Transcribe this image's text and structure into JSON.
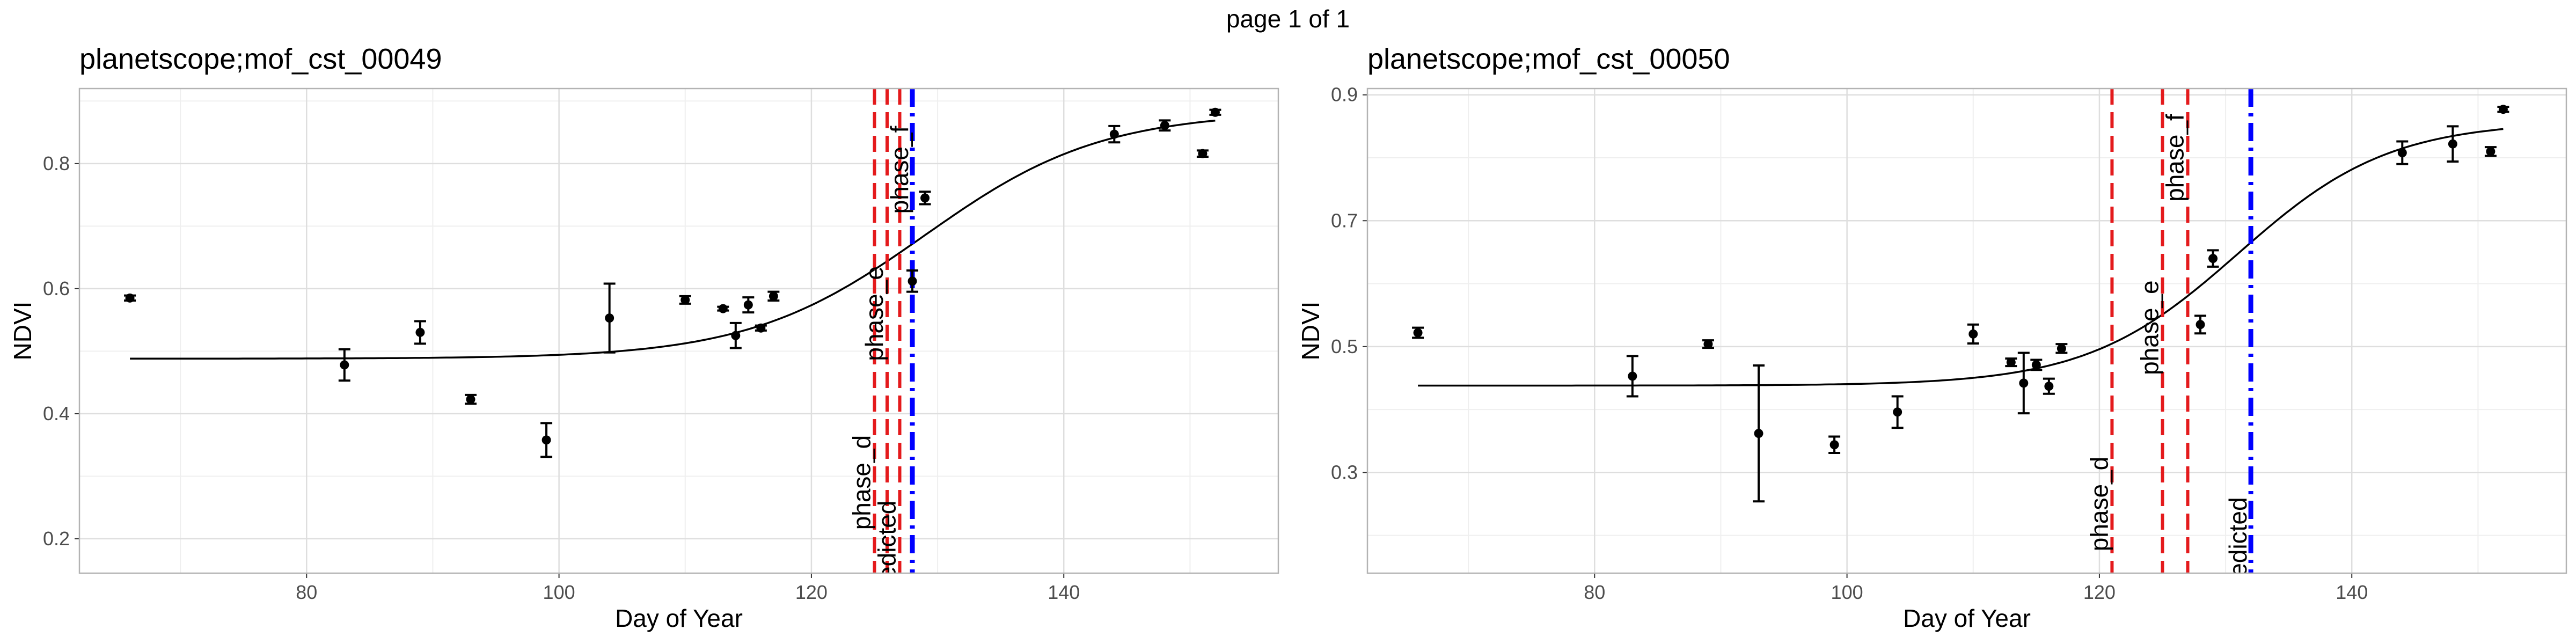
{
  "page_label": "page 1 of 1",
  "colors": {
    "phase_line": "#e41a1c",
    "predicted_line": "#0000ff",
    "fit_curve": "#000000",
    "points": "#000000",
    "grid_major": "#dedede",
    "grid_minor": "#efefef",
    "panel_border": "#b3b3b3"
  },
  "chart_data": [
    {
      "type": "scatter",
      "title": "planetscope;mof_cst_00049",
      "xlabel": "Day of Year",
      "ylabel": "NDVI",
      "xlim": [
        62,
        157
      ],
      "ylim": [
        0.145,
        0.92
      ],
      "x_ticks": [
        80,
        100,
        120,
        140
      ],
      "y_ticks": [
        0.2,
        0.4,
        0.6,
        0.8
      ],
      "y_tick_labels": [
        "0.2",
        "0.4",
        "0.6",
        "0.8"
      ],
      "grid": true,
      "legend": "none",
      "points": [
        {
          "x": 66,
          "y": 0.585,
          "err": 0.004
        },
        {
          "x": 83,
          "y": 0.478,
          "err": 0.025
        },
        {
          "x": 89,
          "y": 0.53,
          "err": 0.018
        },
        {
          "x": 93,
          "y": 0.423,
          "err": 0.007
        },
        {
          "x": 99,
          "y": 0.358,
          "err": 0.027
        },
        {
          "x": 104,
          "y": 0.553,
          "err": 0.055
        },
        {
          "x": 110,
          "y": 0.582,
          "err": 0.006
        },
        {
          "x": 113,
          "y": 0.568,
          "err": 0.003
        },
        {
          "x": 114,
          "y": 0.525,
          "err": 0.02
        },
        {
          "x": 115,
          "y": 0.574,
          "err": 0.012
        },
        {
          "x": 116,
          "y": 0.537,
          "err": 0.004
        },
        {
          "x": 117,
          "y": 0.588,
          "err": 0.007
        },
        {
          "x": 128,
          "y": 0.612,
          "err": 0.017
        },
        {
          "x": 129,
          "y": 0.745,
          "err": 0.01
        },
        {
          "x": 144,
          "y": 0.847,
          "err": 0.013
        },
        {
          "x": 148,
          "y": 0.861,
          "err": 0.008
        },
        {
          "x": 151,
          "y": 0.816,
          "err": 0.005
        },
        {
          "x": 152,
          "y": 0.882,
          "err": 0.004
        }
      ],
      "fit": {
        "base": 0.488,
        "amp": 0.395,
        "mid": 129.0,
        "scale": 7.0,
        "x_range": [
          66,
          152
        ]
      },
      "vlines": [
        {
          "x": 125,
          "label": "phase_d",
          "kind": "phase",
          "label_y": 0.29
        },
        {
          "x": 126,
          "label": "phase_e",
          "kind": "phase",
          "label_y": 0.56
        },
        {
          "x": 127,
          "label": "predicted",
          "kind": "phase",
          "label_y": 0.18
        },
        {
          "x": 128,
          "label": "phase_f",
          "kind": "predicted",
          "label_y": 0.79
        }
      ]
    },
    {
      "type": "scatter",
      "title": "planetscope;mof_cst_00050",
      "xlabel": "Day of Year",
      "ylabel": "NDVI",
      "xlim": [
        62,
        157
      ],
      "ylim": [
        0.14,
        0.91
      ],
      "x_ticks": [
        80,
        100,
        120,
        140
      ],
      "y_ticks": [
        0.3,
        0.5,
        0.7,
        0.9
      ],
      "y_tick_labels": [
        "0.3",
        "0.5",
        "0.7",
        "0.9"
      ],
      "grid": true,
      "legend": "none",
      "points": [
        {
          "x": 66,
          "y": 0.522,
          "err": 0.008
        },
        {
          "x": 83,
          "y": 0.453,
          "err": 0.032
        },
        {
          "x": 89,
          "y": 0.504,
          "err": 0.006
        },
        {
          "x": 93,
          "y": 0.362,
          "err": 0.108
        },
        {
          "x": 99,
          "y": 0.344,
          "err": 0.013
        },
        {
          "x": 104,
          "y": 0.396,
          "err": 0.025
        },
        {
          "x": 110,
          "y": 0.52,
          "err": 0.015
        },
        {
          "x": 113,
          "y": 0.475,
          "err": 0.006
        },
        {
          "x": 114,
          "y": 0.442,
          "err": 0.048
        },
        {
          "x": 115,
          "y": 0.471,
          "err": 0.008
        },
        {
          "x": 116,
          "y": 0.437,
          "err": 0.012
        },
        {
          "x": 117,
          "y": 0.497,
          "err": 0.007
        },
        {
          "x": 128,
          "y": 0.535,
          "err": 0.014
        },
        {
          "x": 129,
          "y": 0.64,
          "err": 0.013
        },
        {
          "x": 144,
          "y": 0.808,
          "err": 0.018
        },
        {
          "x": 148,
          "y": 0.822,
          "err": 0.028
        },
        {
          "x": 151,
          "y": 0.81,
          "err": 0.007
        },
        {
          "x": 152,
          "y": 0.877,
          "err": 0.004
        }
      ],
      "fit": {
        "base": 0.438,
        "amp": 0.42,
        "mid": 131.0,
        "scale": 6.0,
        "x_range": [
          66,
          152
        ]
      },
      "vlines": [
        {
          "x": 121,
          "label": "phase_d",
          "kind": "phase",
          "label_y": 0.25
        },
        {
          "x": 125,
          "label": "phase_e",
          "kind": "phase",
          "label_y": 0.53
        },
        {
          "x": 127,
          "label": "phase_f",
          "kind": "phase",
          "label_y": 0.8
        },
        {
          "x": 132,
          "label": "predicted",
          "kind": "predicted",
          "label_y": 0.18
        }
      ]
    }
  ]
}
